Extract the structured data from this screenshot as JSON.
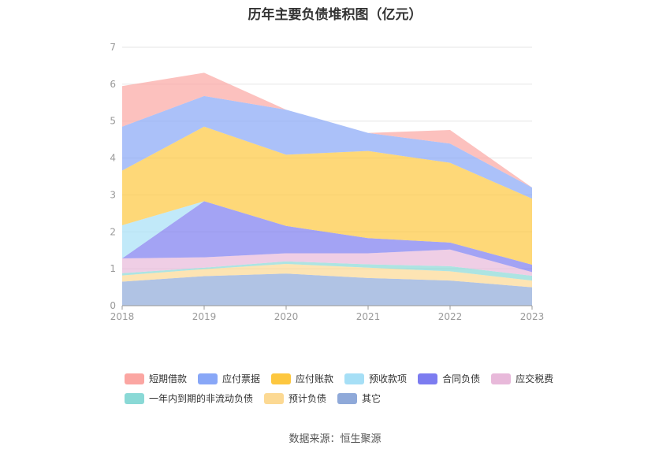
{
  "chart_data": {
    "type": "area",
    "title": "历年主要负债堆积图（亿元）",
    "categories": [
      "2018",
      "2019",
      "2020",
      "2021",
      "2022",
      "2023"
    ],
    "ylim": [
      0,
      7
    ],
    "yticks": [
      "0",
      "1",
      "2",
      "3",
      "4",
      "5",
      "6",
      "7"
    ],
    "stacked": true,
    "grid": true,
    "legend_position": "bottom",
    "series": [
      {
        "name": "其它",
        "color": "#8fa9d9",
        "values": [
          0.65,
          0.8,
          0.87,
          0.75,
          0.68,
          0.5
        ]
      },
      {
        "name": "预计负债",
        "color": "#fcd993",
        "values": [
          0.17,
          0.19,
          0.26,
          0.28,
          0.25,
          0.18
        ]
      },
      {
        "name": "一年内到期的非流动负债",
        "color": "#8ad9d6",
        "values": [
          0.06,
          0.04,
          0.07,
          0.09,
          0.14,
          0.13
        ]
      },
      {
        "name": "应交税费",
        "color": "#e8b9da",
        "values": [
          0.4,
          0.28,
          0.22,
          0.3,
          0.45,
          0.1
        ]
      },
      {
        "name": "合同负债",
        "color": "#7c7cf0",
        "values": [
          0.0,
          1.52,
          0.74,
          0.41,
          0.19,
          0.2
        ]
      },
      {
        "name": "预收款项",
        "color": "#a6dff6",
        "values": [
          0.9,
          0.0,
          0.0,
          0.0,
          0.0,
          0.0
        ]
      },
      {
        "name": "应付账款",
        "color": "#fdc73f",
        "values": [
          1.48,
          2.02,
          1.93,
          2.36,
          2.16,
          1.79
        ]
      },
      {
        "name": "应付票据",
        "color": "#88a7f7",
        "values": [
          1.19,
          0.83,
          1.22,
          0.49,
          0.52,
          0.3
        ]
      },
      {
        "name": "短期借款",
        "color": "#fba6a2",
        "values": [
          1.1,
          0.63,
          0.0,
          0.0,
          0.37,
          0.0
        ]
      }
    ]
  },
  "source_text": "数据来源：恒生聚源"
}
